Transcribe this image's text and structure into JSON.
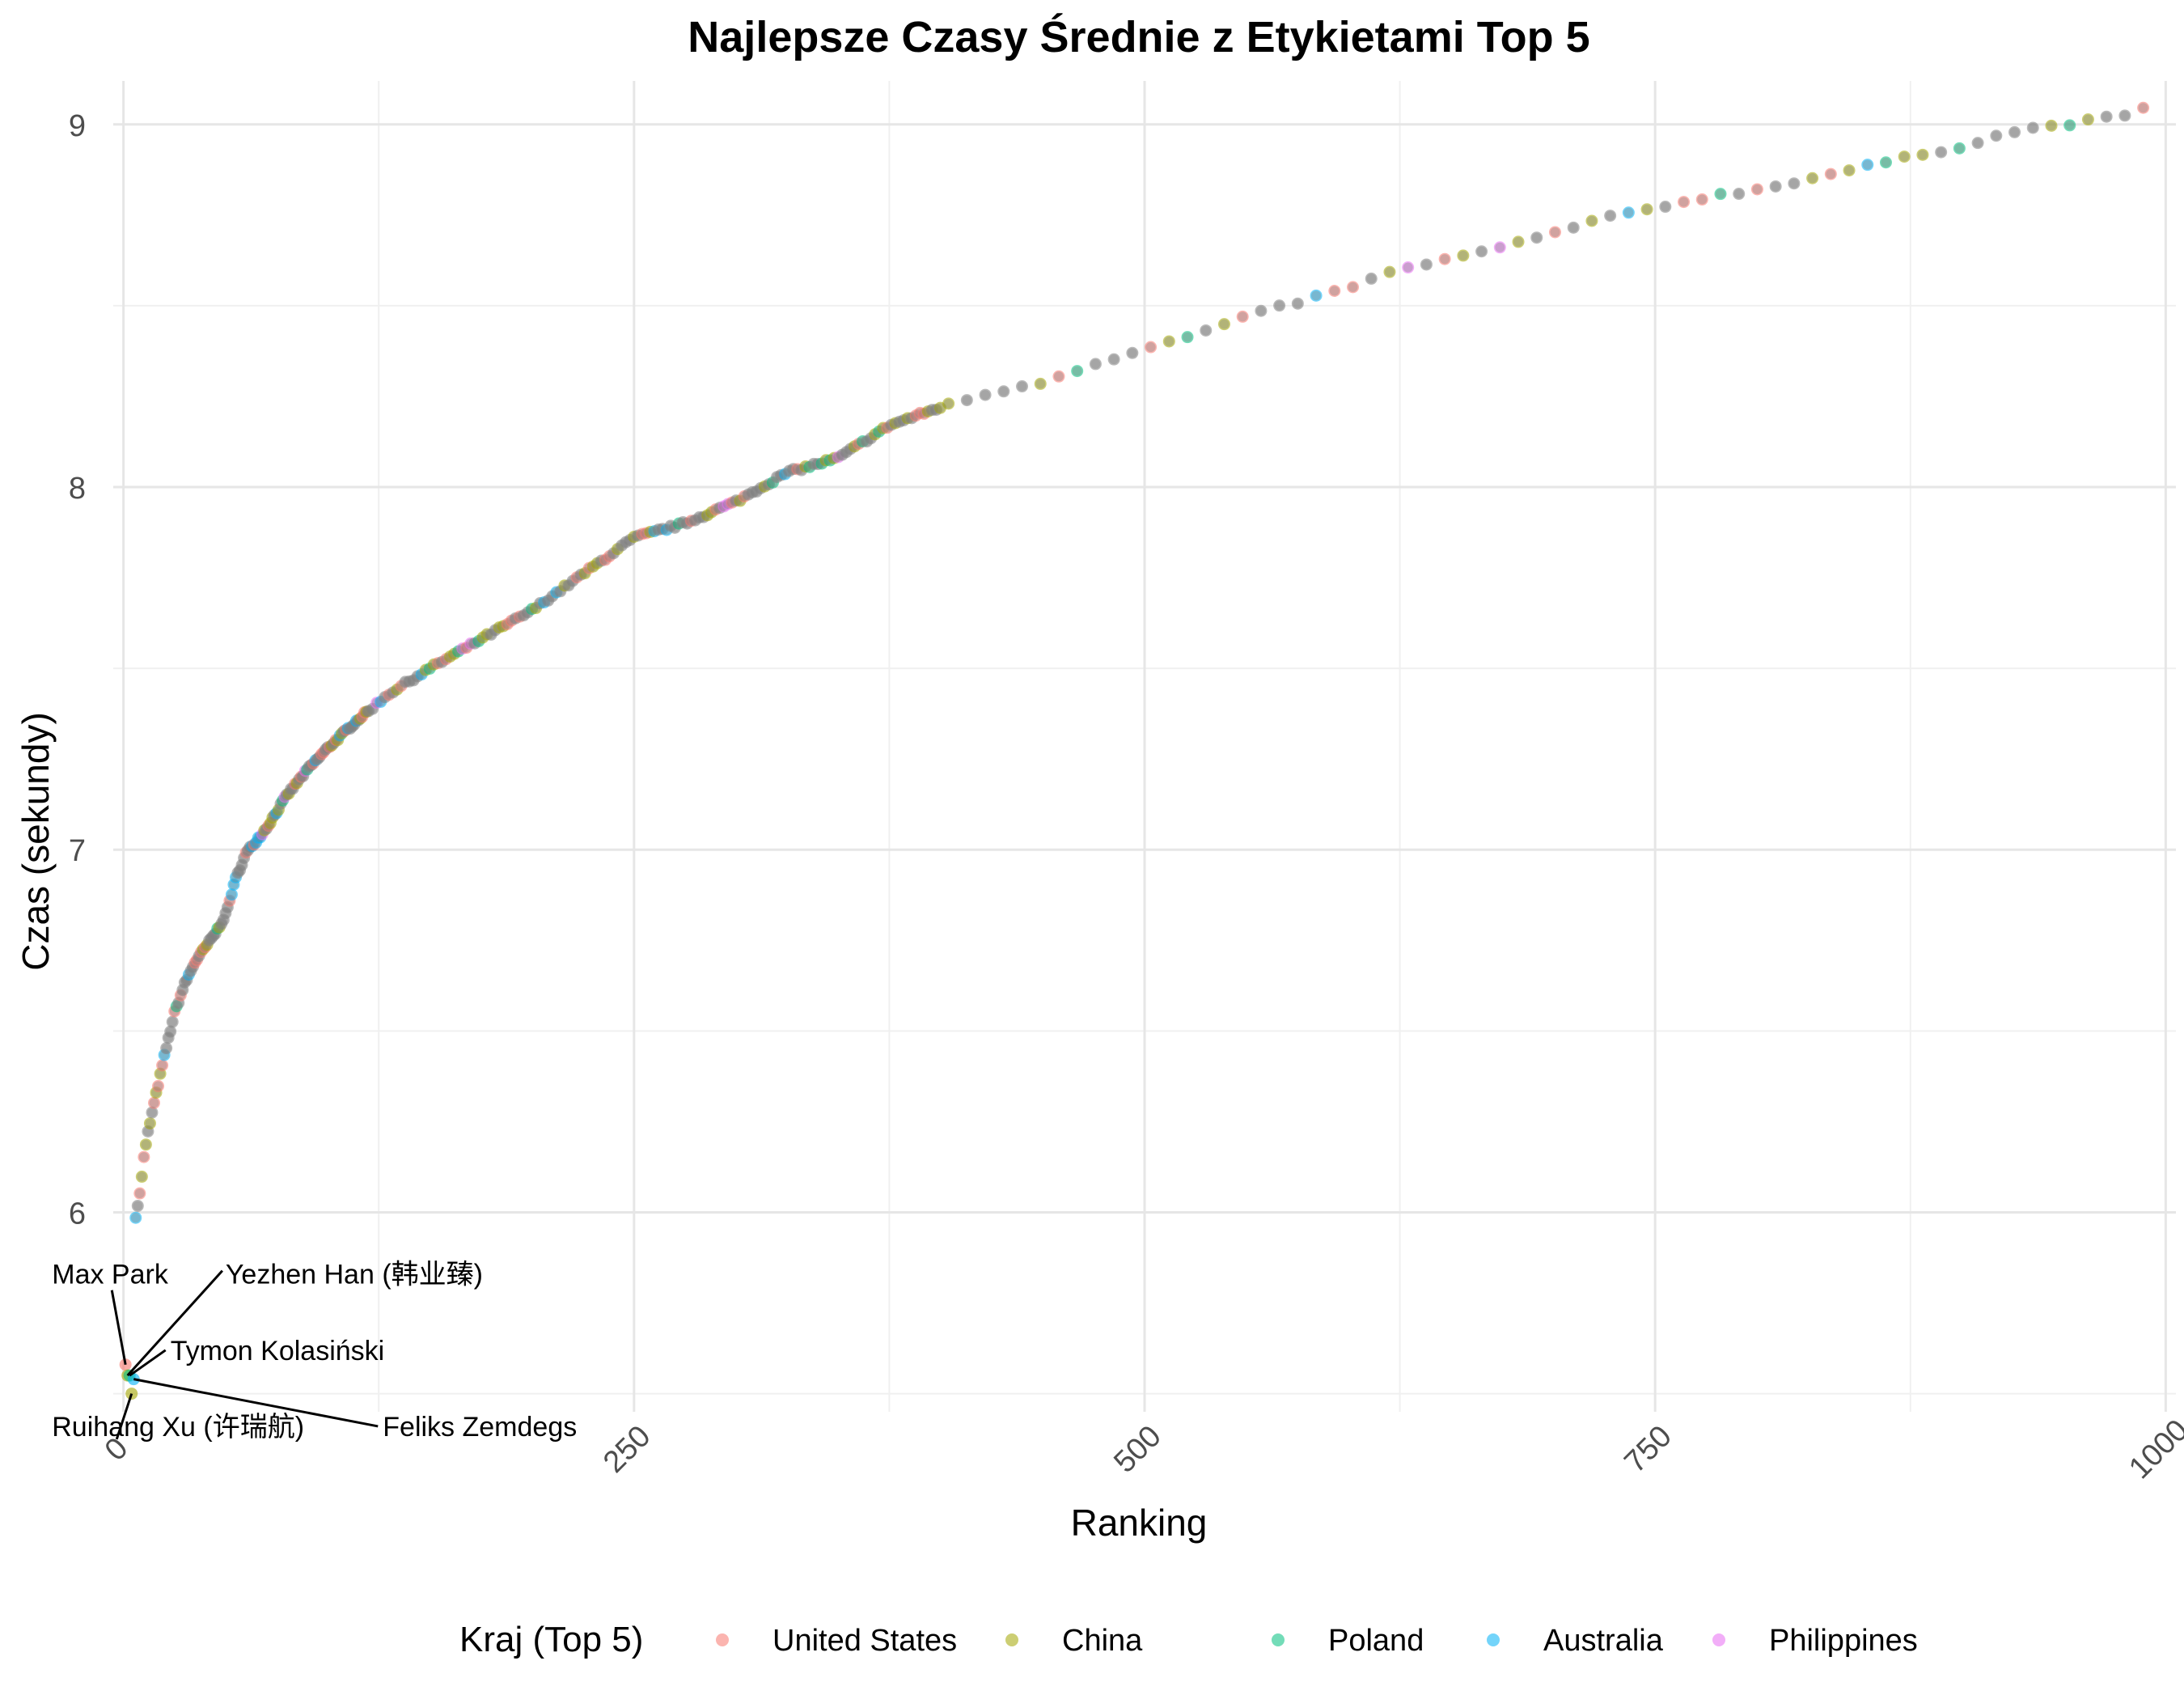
{
  "chart_data": {
    "type": "scatter",
    "title": "Najlepsze Czasy Średnie z Etykietami Top 5",
    "xlabel": "Ranking",
    "ylabel": "Czas (sekundy)",
    "xlim": [
      -5,
      1005
    ],
    "ylim": [
      5.45,
      9.12
    ],
    "x_ticks": [
      0,
      250,
      500,
      750,
      1000
    ],
    "x_tick_labels": [
      "0",
      "250",
      "500",
      "750",
      "1000"
    ],
    "y_ticks": [
      6,
      7,
      8,
      9
    ],
    "y_tick_labels": [
      "6",
      "7",
      "8",
      "9"
    ],
    "grid": true,
    "legend": {
      "title": "Kraj (Top 5)",
      "position": "bottom",
      "entries": [
        {
          "name": "United States",
          "color": "#F8766D"
        },
        {
          "name": "China",
          "color": "#A3A500"
        },
        {
          "name": "Poland",
          "color": "#00BF7D"
        },
        {
          "name": "Australia",
          "color": "#00B0F6"
        },
        {
          "name": "Philippines",
          "color": "#E76BF3"
        }
      ],
      "other_color": "#808080"
    },
    "curve_anchors": [
      [
        1,
        5.52
      ],
      [
        3,
        5.55
      ],
      [
        5,
        5.55
      ],
      [
        6,
        5.99
      ],
      [
        8,
        6.05
      ],
      [
        10,
        6.15
      ],
      [
        12,
        6.22
      ],
      [
        15,
        6.3
      ],
      [
        20,
        6.43
      ],
      [
        25,
        6.55
      ],
      [
        30,
        6.63
      ],
      [
        35,
        6.69
      ],
      [
        40,
        6.73
      ],
      [
        45,
        6.77
      ],
      [
        50,
        6.82
      ],
      [
        55,
        6.92
      ],
      [
        60,
        6.99
      ],
      [
        70,
        7.06
      ],
      [
        80,
        7.15
      ],
      [
        90,
        7.22
      ],
      [
        100,
        7.28
      ],
      [
        115,
        7.36
      ],
      [
        130,
        7.43
      ],
      [
        150,
        7.5
      ],
      [
        175,
        7.58
      ],
      [
        200,
        7.66
      ],
      [
        225,
        7.76
      ],
      [
        250,
        7.86
      ],
      [
        275,
        7.9
      ],
      [
        300,
        7.96
      ],
      [
        325,
        8.04
      ],
      [
        350,
        8.08
      ],
      [
        375,
        8.17
      ],
      [
        400,
        8.22
      ],
      [
        425,
        8.26
      ],
      [
        450,
        8.29
      ],
      [
        475,
        8.34
      ],
      [
        500,
        8.38
      ],
      [
        525,
        8.42
      ],
      [
        550,
        8.47
      ],
      [
        575,
        8.51
      ],
      [
        600,
        8.55
      ],
      [
        625,
        8.6
      ],
      [
        650,
        8.63
      ],
      [
        675,
        8.66
      ],
      [
        700,
        8.7
      ],
      [
        725,
        8.74
      ],
      [
        750,
        8.77
      ],
      [
        775,
        8.8
      ],
      [
        800,
        8.82
      ],
      [
        825,
        8.85
      ],
      [
        850,
        8.88
      ],
      [
        875,
        8.91
      ],
      [
        900,
        8.94
      ],
      [
        925,
        8.98
      ],
      [
        950,
        9.0
      ],
      [
        975,
        9.02
      ],
      [
        995,
        9.05
      ]
    ],
    "point_count": 330,
    "top5_points": [
      {
        "rank": 1,
        "name": "Max Park",
        "time": 5.58,
        "country": "United States",
        "label_x": -35,
        "label_y": 5.83
      },
      {
        "rank": 2,
        "name": "Yezhen Han (韩业臻)",
        "time": 5.55,
        "country": "China",
        "label_x": 50,
        "label_y": 5.83
      },
      {
        "rank": 3,
        "name": "Tymon Kolasiński",
        "time": 5.55,
        "country": "Poland",
        "label_x": 23,
        "label_y": 5.62
      },
      {
        "rank": 4,
        "name": "Ruihang Xu (许瑞航)",
        "time": 5.5,
        "country": "China",
        "label_x": -35,
        "label_y": 5.41
      },
      {
        "rank": 5,
        "name": "Feliks Zemdegs",
        "time": 5.54,
        "country": "Australia",
        "label_x": 127,
        "label_y": 5.41
      }
    ]
  }
}
